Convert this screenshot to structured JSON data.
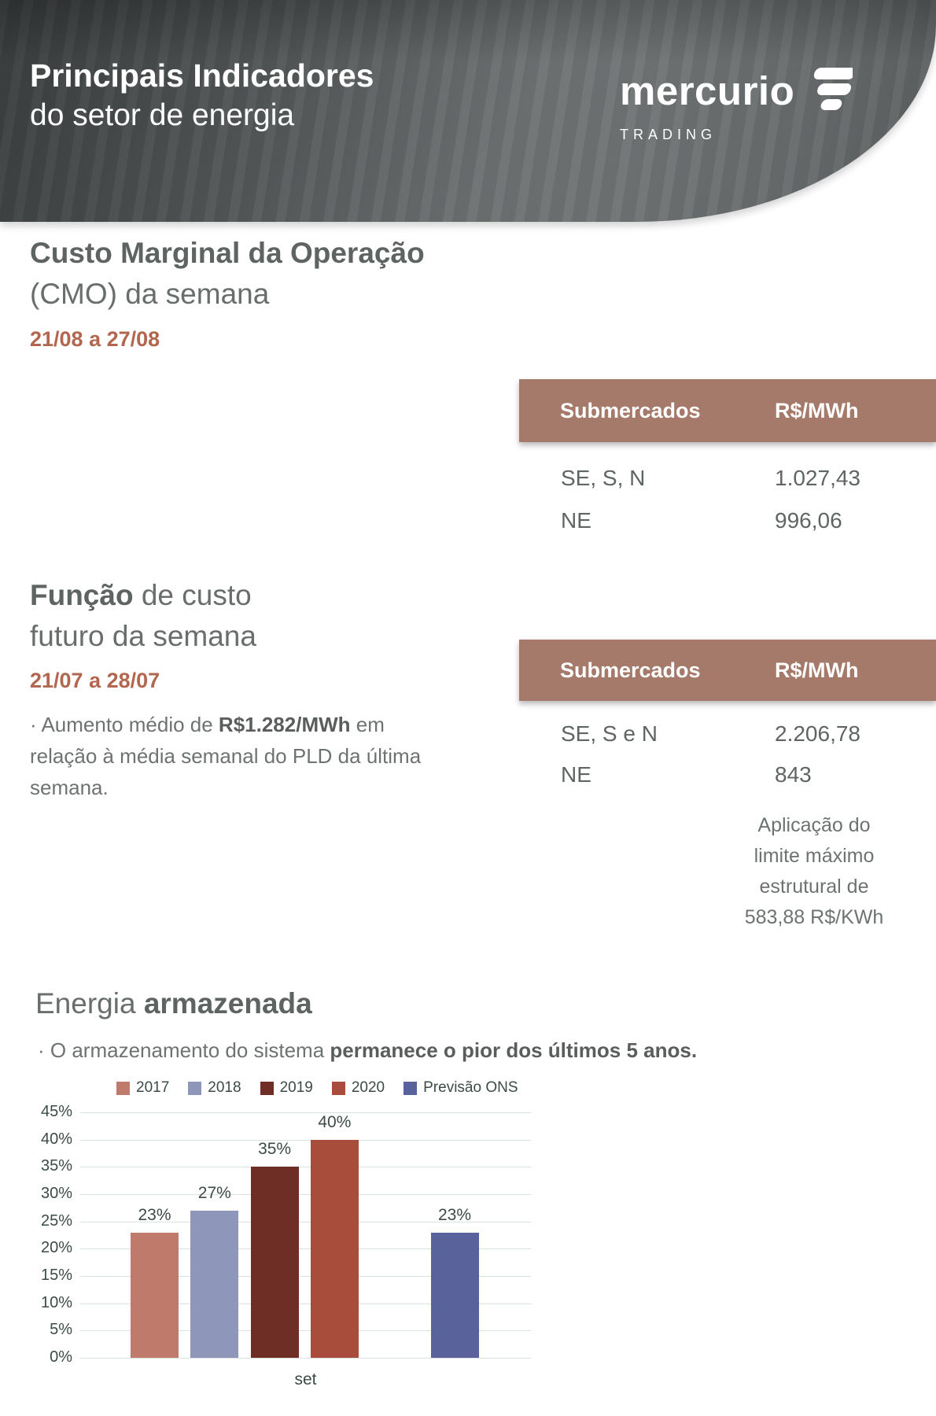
{
  "header": {
    "title_line1": "Principais Indicadores",
    "title_line2": "do setor de energia",
    "brand": {
      "name": "mercurio",
      "sub": "TRADING"
    }
  },
  "cmo": {
    "title_bold": "Custo Marginal da Operação",
    "title_rest": "(CMO) da semana",
    "period": "21/08 a 27/08",
    "table": {
      "col_submercados": "Submercados",
      "col_valor": "R$/MWh",
      "rows": [
        {
          "submercado": "SE, S, N",
          "valor": "1.027,43"
        },
        {
          "submercado": "NE",
          "valor": "996,06"
        }
      ]
    }
  },
  "funcao": {
    "title_bold": "Função",
    "title_rest": " de custo",
    "title_line2": "futuro da semana",
    "period": "21/07 a 28/07",
    "bullet_prefix": "· Aumento médio de ",
    "bullet_bold": "R$1.282/MWh",
    "bullet_suffix": " em relação à média semanal do PLD da última semana.",
    "table": {
      "col_submercados": "Submercados",
      "col_valor": "R$/MWh",
      "rows": [
        {
          "submercado": "SE, S e N",
          "valor": "2.206,78"
        },
        {
          "submercado": "NE",
          "valor": "843"
        }
      ]
    },
    "note_lines": [
      "Aplicação do",
      "limite máximo",
      "estrutural de",
      "583,88 R$/KWh"
    ]
  },
  "energia": {
    "title_regular": "Energia ",
    "title_bold": "armazenada",
    "bullet_prefix": "· O armazenamento do sistema ",
    "bullet_bold": "permanece o pior dos últimos 5 anos."
  },
  "chart_data": {
    "type": "bar",
    "title": "Energia armazenada",
    "xlabel": "set",
    "ylabel": "",
    "ylim": [
      0,
      45
    ],
    "ytick_step": 5,
    "yticks": [
      "0%",
      "5%",
      "10%",
      "15%",
      "20%",
      "25%",
      "30%",
      "35%",
      "40%",
      "45%"
    ],
    "grid": true,
    "legend_position": "top",
    "categories": [
      "set"
    ],
    "series": [
      {
        "name": "2017",
        "value": 23,
        "label": "23%",
        "color": "#bf7a6b",
        "slot": 0
      },
      {
        "name": "2018",
        "value": 27,
        "label": "27%",
        "color": "#8e96b9",
        "slot": 1
      },
      {
        "name": "2019",
        "value": 35,
        "label": "35%",
        "color": "#6e2d25",
        "slot": 2
      },
      {
        "name": "2020",
        "value": 40,
        "label": "40%",
        "color": "#a84c3b",
        "slot": 3
      },
      {
        "name": "Previsão ONS",
        "value": 23,
        "label": "23%",
        "color": "#59629a",
        "slot": 5
      }
    ]
  }
}
